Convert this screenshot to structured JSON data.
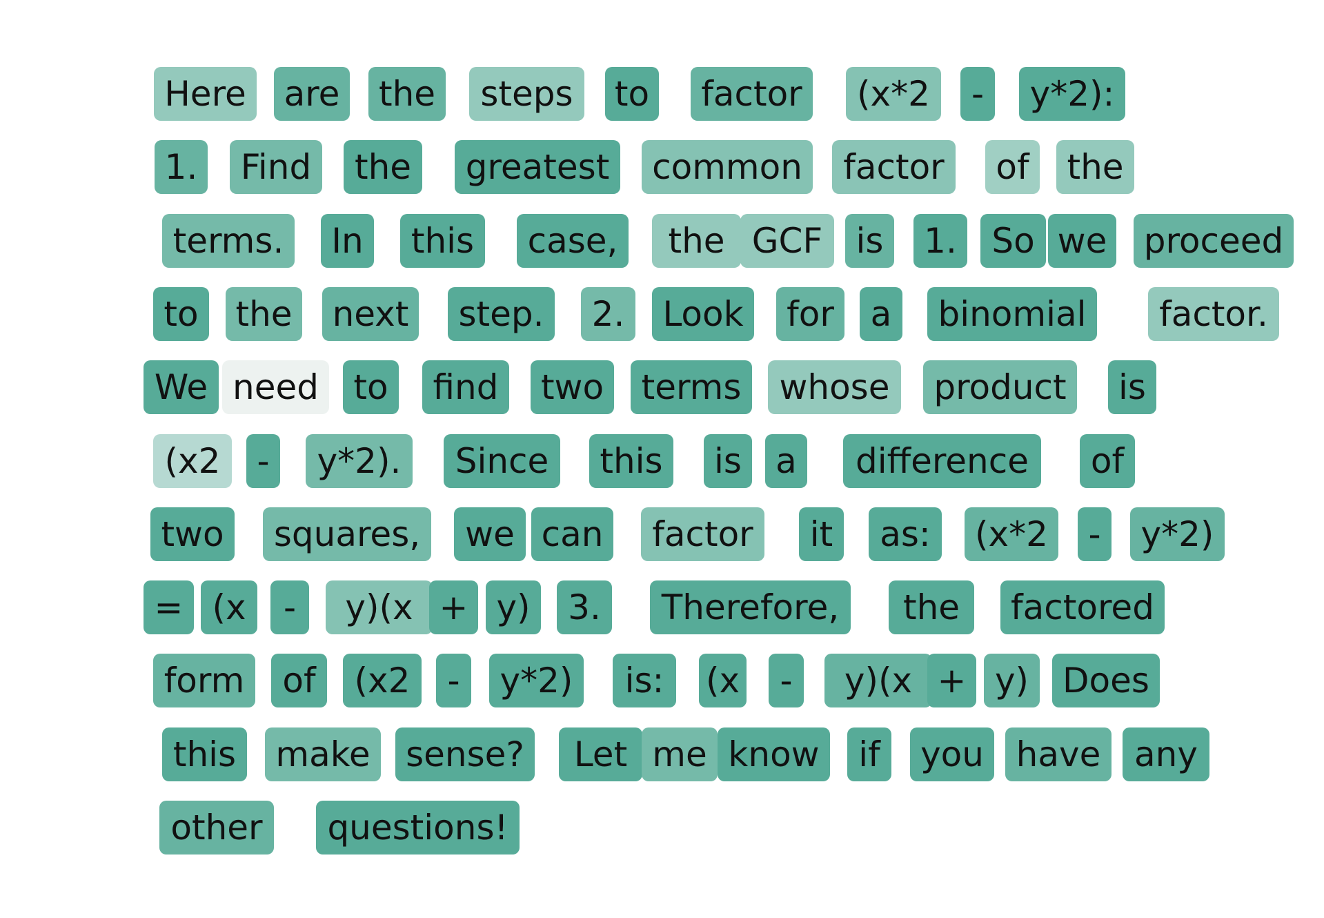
{
  "tokens": [
    [
      {
        "t": "Here",
        "c": "#94c9bc"
      },
      {
        "t": "are",
        "c": "#67b3a1"
      },
      {
        "t": "the",
        "c": "#67b3a1"
      },
      {
        "t": "steps",
        "c": "#94c9bc"
      },
      {
        "t": "to",
        "c": "#57ab98"
      },
      {
        "t": "factor",
        "c": "#67b3a1"
      },
      {
        "t": "(x*2",
        "c": "#85c2b3"
      },
      {
        "t": "-",
        "c": "#57ab98"
      },
      {
        "t": "y*2):",
        "c": "#57ab98"
      }
    ],
    [
      {
        "t": "1.",
        "c": "#67b3a1"
      },
      {
        "t": "Find",
        "c": "#75baa9"
      },
      {
        "t": "the",
        "c": "#57ab98"
      },
      {
        "t": "greatest",
        "c": "#57ab98"
      },
      {
        "t": "common",
        "c": "#85c2b3"
      },
      {
        "t": "factor",
        "c": "#8ac4b6"
      },
      {
        "t": "of",
        "c": "#a0cfc3"
      },
      {
        "t": "the",
        "c": "#94c9bc"
      }
    ],
    [
      {
        "t": "terms.",
        "c": "#75baa9"
      },
      {
        "t": "In",
        "c": "#57ab98"
      },
      {
        "t": "this",
        "c": "#57ab98"
      },
      {
        "t": "case,",
        "c": "#57ab98"
      },
      {
        "t": "the",
        "c": "#94c9bc"
      },
      {
        "t": "GCF",
        "c": "#94c9bc"
      },
      {
        "t": "is",
        "c": "#67b3a1"
      },
      {
        "t": "1.",
        "c": "#57ab98"
      },
      {
        "t": "So",
        "c": "#57ab98"
      },
      {
        "t": "we",
        "c": "#57ab98"
      },
      {
        "t": "proceed",
        "c": "#67b3a1"
      }
    ],
    [
      {
        "t": "to",
        "c": "#57ab98"
      },
      {
        "t": "the",
        "c": "#75baa9"
      },
      {
        "t": "next",
        "c": "#67b3a1"
      },
      {
        "t": "step.",
        "c": "#57ab98"
      },
      {
        "t": "2.",
        "c": "#75baa9"
      },
      {
        "t": "Look",
        "c": "#57ab98"
      },
      {
        "t": "for",
        "c": "#67b3a1"
      },
      {
        "t": "a",
        "c": "#57ab98"
      },
      {
        "t": "binomial",
        "c": "#57ab98"
      },
      {
        "t": "factor.",
        "c": "#94c9bc"
      }
    ],
    [
      {
        "t": "We",
        "c": "#57ab98"
      },
      {
        "t": "need",
        "c": "#edf2f0"
      },
      {
        "t": "to",
        "c": "#57ab98"
      },
      {
        "t": "find",
        "c": "#57ab98"
      },
      {
        "t": "two",
        "c": "#57ab98"
      },
      {
        "t": "terms",
        "c": "#57ab98"
      },
      {
        "t": "whose",
        "c": "#94c9bc"
      },
      {
        "t": "product",
        "c": "#75baa9"
      },
      {
        "t": "is",
        "c": "#57ab98"
      }
    ],
    [
      {
        "t": "(x2",
        "c": "#b6d9d2"
      },
      {
        "t": "-",
        "c": "#57ab98"
      },
      {
        "t": "y*2).",
        "c": "#75baa9"
      },
      {
        "t": "Since",
        "c": "#57ab98"
      },
      {
        "t": "this",
        "c": "#57ab98"
      },
      {
        "t": "is",
        "c": "#57ab98"
      },
      {
        "t": "a",
        "c": "#57ab98"
      },
      {
        "t": "difference",
        "c": "#57ab98"
      },
      {
        "t": "of",
        "c": "#57ab98"
      }
    ],
    [
      {
        "t": "two",
        "c": "#57ab98"
      },
      {
        "t": "squares,",
        "c": "#75baa9"
      },
      {
        "t": "we",
        "c": "#57ab98"
      },
      {
        "t": "can",
        "c": "#57ab98"
      },
      {
        "t": "factor",
        "c": "#85c2b3"
      },
      {
        "t": "it",
        "c": "#57ab98"
      },
      {
        "t": "as:",
        "c": "#57ab98"
      },
      {
        "t": "(x*2",
        "c": "#67b3a1"
      },
      {
        "t": "-",
        "c": "#57ab98"
      },
      {
        "t": "y*2)",
        "c": "#67b3a1"
      }
    ],
    [
      {
        "t": "=",
        "c": "#57ab98"
      },
      {
        "t": "(x",
        "c": "#57ab98"
      },
      {
        "t": "-",
        "c": "#57ab98"
      },
      {
        "t": "y)(x",
        "c": "#85c2b3"
      },
      {
        "t": "+",
        "c": "#57ab98"
      },
      {
        "t": "y)",
        "c": "#57ab98"
      },
      {
        "t": "3.",
        "c": "#57ab98"
      },
      {
        "t": "Therefore,",
        "c": "#57ab98"
      },
      {
        "t": "the",
        "c": "#57ab98"
      },
      {
        "t": "factored",
        "c": "#57ab98"
      }
    ],
    [
      {
        "t": "form",
        "c": "#67b3a1"
      },
      {
        "t": "of",
        "c": "#57ab98"
      },
      {
        "t": "(x2",
        "c": "#57ab98"
      },
      {
        "t": "-",
        "c": "#57ab98"
      },
      {
        "t": "y*2)",
        "c": "#57ab98"
      },
      {
        "t": "is:",
        "c": "#57ab98"
      },
      {
        "t": "(x",
        "c": "#57ab98"
      },
      {
        "t": "-",
        "c": "#57ab98"
      },
      {
        "t": "y)(x",
        "c": "#67b3a1"
      },
      {
        "t": "+",
        "c": "#57ab98"
      },
      {
        "t": "y)",
        "c": "#67b3a1"
      },
      {
        "t": "Does",
        "c": "#57ab98"
      }
    ],
    [
      {
        "t": "this",
        "c": "#57ab98"
      },
      {
        "t": "make",
        "c": "#75baa9"
      },
      {
        "t": "sense?",
        "c": "#57ab98"
      },
      {
        "t": "Let",
        "c": "#57ab98"
      },
      {
        "t": "me",
        "c": "#75baa9"
      },
      {
        "t": "know",
        "c": "#57ab98"
      },
      {
        "t": "if",
        "c": "#57ab98"
      },
      {
        "t": "you",
        "c": "#57ab98"
      },
      {
        "t": "have",
        "c": "#67b3a1"
      },
      {
        "t": "any",
        "c": "#57ab98"
      }
    ],
    [
      {
        "t": "other",
        "c": "#67b3a1"
      },
      {
        "t": "questions!",
        "c": "#57ab98"
      }
    ]
  ]
}
